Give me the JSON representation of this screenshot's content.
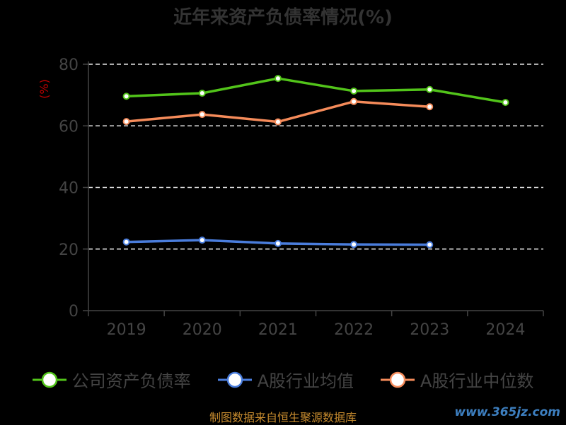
{
  "title": "近年来资产负债率情况(%)",
  "source": "制图数据来自恒生聚源数据库",
  "watermark": "www.365jz.com",
  "colors": {
    "company": "#52c41a",
    "avg": "#4a7ddc",
    "median": "#f58b5a"
  },
  "chart_data": {
    "type": "line",
    "title": "近年来资产负债率情况(%)",
    "ylabel": "(%)",
    "xlabel": "",
    "categories": [
      "2019",
      "2020",
      "2021",
      "2022",
      "2023",
      "2024"
    ],
    "ylim": [
      0,
      80
    ],
    "yticks": [
      0,
      20,
      40,
      60,
      80
    ],
    "grid": true,
    "legend_position": "bottom",
    "series": [
      {
        "name": "公司资产负债率",
        "values": [
          69.6,
          70.6,
          75.4,
          71.3,
          71.8,
          67.6
        ]
      },
      {
        "name": "A股行业均值",
        "values": [
          22.3,
          22.9,
          21.8,
          21.5,
          21.4,
          null
        ]
      },
      {
        "name": "A股行业中位数",
        "values": [
          61.4,
          63.7,
          61.3,
          67.9,
          66.2,
          null
        ]
      }
    ]
  }
}
